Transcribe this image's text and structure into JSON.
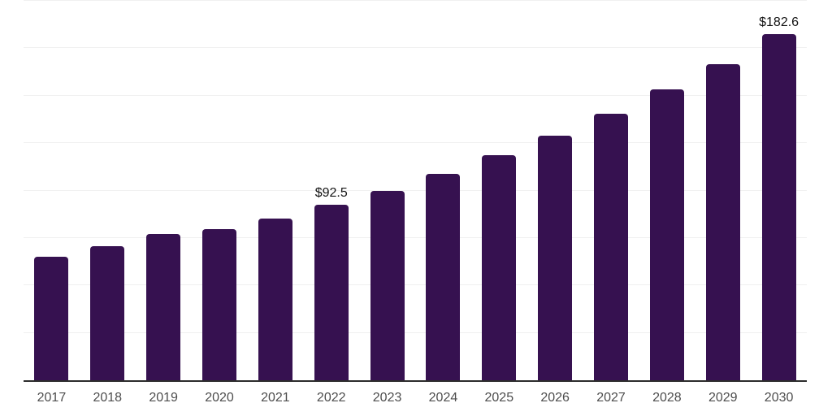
{
  "chart_data": {
    "type": "bar",
    "categories": [
      "2017",
      "2018",
      "2019",
      "2020",
      "2021",
      "2022",
      "2023",
      "2024",
      "2025",
      "2026",
      "2027",
      "2028",
      "2029",
      "2030"
    ],
    "values": [
      65.1,
      70.8,
      77.0,
      79.8,
      85.4,
      92.5,
      100.0,
      108.9,
      118.6,
      129.0,
      140.6,
      153.2,
      166.6,
      182.6
    ],
    "annotations": {
      "2022": "$92.5",
      "2030": "$182.6"
    },
    "title": "",
    "xlabel": "",
    "ylabel": "",
    "ylim": [
      0,
      200
    ],
    "gridline_step": 25,
    "grid": true,
    "legend": "none",
    "bar_color": "#361150",
    "gridline_color": "#f0f0f0",
    "axis_line_color": "#2c2c2c",
    "tick_label_color": "#4d4d4d",
    "value_label_color": "#141414"
  }
}
